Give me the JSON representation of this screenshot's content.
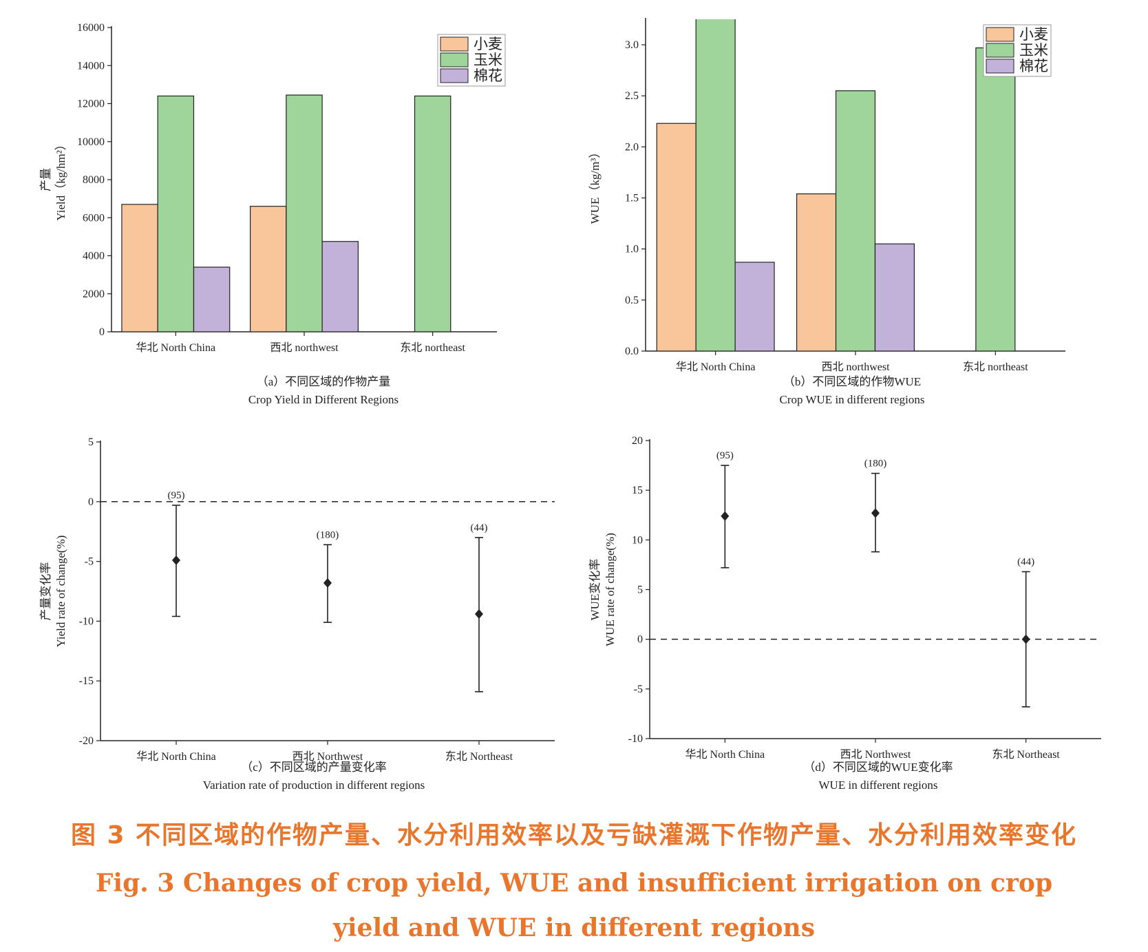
{
  "colors": {
    "wheat": "#f9c59a",
    "maize": "#9fd49a",
    "cotton": "#c2b2d9",
    "caption": "#e8762d",
    "axis": "#222222"
  },
  "chart_data": [
    {
      "id": "a",
      "type": "bar",
      "categories": [
        "华北  North China",
        "西北  northwest",
        "东北  northeast"
      ],
      "series": [
        {
          "name": "小麦",
          "values": [
            6700,
            6600,
            null
          ]
        },
        {
          "name": "玉米",
          "values": [
            12400,
            12450,
            12400
          ]
        },
        {
          "name": "棉花",
          "values": [
            3400,
            4750,
            null
          ]
        }
      ],
      "ylabel": "Yield（kg/hm²）",
      "ylabel_cn": "产量",
      "ylim": [
        0,
        16000
      ],
      "yticks": [
        "0",
        "2000",
        "4000",
        "6000",
        "8000",
        "10000",
        "12000",
        "14000",
        "16000"
      ],
      "caption_cn": "（a）不同区域的作物产量",
      "caption_en": "Crop Yield in Different Regions",
      "legend_position": "top-right"
    },
    {
      "id": "b",
      "type": "bar",
      "categories": [
        "华北  North China",
        "西北  northwest",
        "东北  northeast"
      ],
      "series": [
        {
          "name": "小麦",
          "values": [
            2.23,
            1.54,
            null
          ]
        },
        {
          "name": "玉米",
          "values": [
            3.3,
            2.55,
            2.97
          ]
        },
        {
          "name": "棉花",
          "values": [
            0.87,
            1.05,
            null
          ]
        }
      ],
      "ylabel": "WUE（kg/m³）",
      "ylim": [
        0,
        3.25
      ],
      "yticks": [
        "0.0",
        "0.5",
        "1.0",
        "1.5",
        "2.0",
        "2.5",
        "3.0"
      ],
      "caption_cn": "（b）不同区域的作物WUE",
      "caption_en": "Crop WUE in different regions",
      "legend_position": "top-right"
    },
    {
      "id": "c",
      "type": "scatter",
      "categories": [
        "华北  North China",
        "西北  Northwest",
        "东北  Northeast"
      ],
      "points": [
        {
          "mean": -4.9,
          "low": -9.6,
          "high": -0.3,
          "n_label": "(95)"
        },
        {
          "mean": -6.8,
          "low": -10.1,
          "high": -3.6,
          "n_label": "(180)"
        },
        {
          "mean": -9.4,
          "low": -15.9,
          "high": -3.0,
          "n_label": "(44)"
        }
      ],
      "ylabel": "Yield rate of change(%)",
      "ylabel_cn": "产量变化率",
      "ylim": [
        -20,
        5
      ],
      "yticks": [
        "-20",
        "-15",
        "-10",
        "-5",
        "0",
        "5"
      ],
      "reference_line": 0,
      "caption_cn": "（c）不同区域的产量变化率",
      "caption_en": "Variation rate of production in different regions"
    },
    {
      "id": "d",
      "type": "scatter",
      "categories": [
        "华北  North China",
        "西北  Northwest",
        "东北  Northeast"
      ],
      "points": [
        {
          "mean": 12.4,
          "low": 7.2,
          "high": 17.5,
          "n_label": "(95)"
        },
        {
          "mean": 12.7,
          "low": 8.8,
          "high": 16.7,
          "n_label": "(180)"
        },
        {
          "mean": 0.0,
          "low": -6.8,
          "high": 6.8,
          "n_label": "(44)"
        }
      ],
      "ylabel": "WUE rate of change(%)",
      "ylabel_cn": "WUE变化率",
      "ylim": [
        -10,
        20
      ],
      "yticks": [
        "-10",
        "-5",
        "0",
        "5",
        "10",
        "15",
        "20"
      ],
      "reference_line": 0,
      "caption_cn": "（d）不同区域的WUE变化率",
      "caption_en": "WUE in different regions"
    }
  ],
  "figure_caption": {
    "cn": "图 3    不同区域的作物产量、水分利用效率以及亏缺灌溉下作物产量、水分利用效率变化",
    "en_line1": "Fig. 3    Changes of crop yield, WUE and insufficient irrigation on crop",
    "en_line2": "yield and WUE in different regions"
  }
}
